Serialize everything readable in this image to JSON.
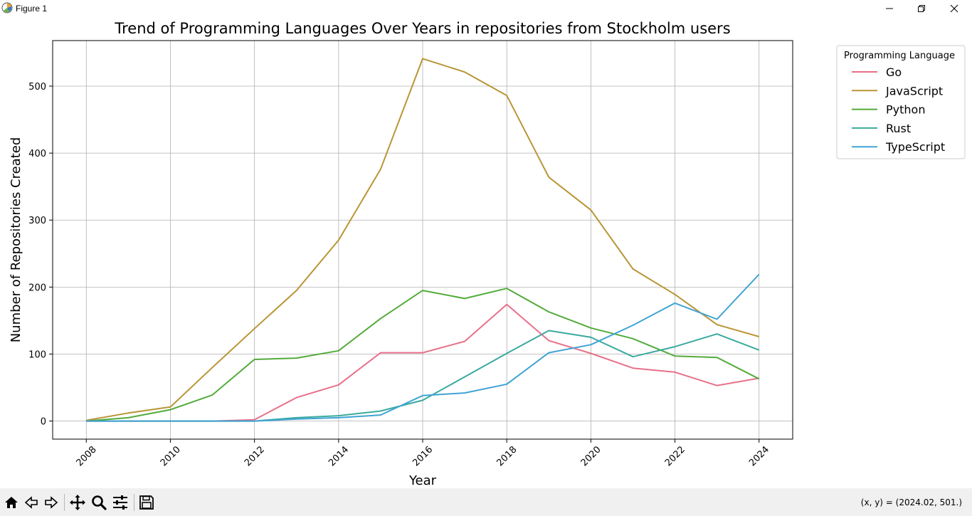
{
  "window": {
    "title": "Figure 1",
    "controls": [
      "minimize-icon",
      "restore-icon",
      "close-icon"
    ]
  },
  "toolbar": {
    "buttons": [
      "home-icon",
      "back-icon",
      "forward-icon",
      "pan-icon",
      "zoom-icon",
      "configure-icon",
      "save-icon"
    ],
    "coords_text": "(x, y) = (2024.02, 501.)"
  },
  "chart_data": {
    "type": "line",
    "title": "Trend of Programming Languages Over Years in repositories from Stockholm users",
    "xlabel": "Year",
    "ylabel": "Number of Repositories Created",
    "xlim": [
      2007.2,
      2024.8
    ],
    "ylim": [
      -27,
      568
    ],
    "x_ticks": [
      2008,
      2010,
      2012,
      2014,
      2016,
      2018,
      2020,
      2022,
      2024
    ],
    "y_ticks": [
      0,
      100,
      200,
      300,
      400,
      500
    ],
    "grid": true,
    "legend": {
      "title": "Programming Language",
      "placement": "outside-top-right"
    },
    "x": [
      2008,
      2009,
      2010,
      2011,
      2012,
      2013,
      2014,
      2015,
      2016,
      2017,
      2018,
      2019,
      2020,
      2021,
      2022,
      2023,
      2024
    ],
    "series": [
      {
        "name": "Go",
        "color": "#e8708a",
        "values": [
          0,
          0,
          0,
          0,
          2,
          35,
          54,
          102,
          102,
          119,
          174,
          120,
          101,
          79,
          73,
          53,
          64
        ]
      },
      {
        "name": "JavaScript",
        "color": "#b89535",
        "values": [
          1,
          12,
          21,
          80,
          138,
          195,
          270,
          376,
          541,
          521,
          486,
          364,
          315,
          227,
          189,
          144,
          126
        ]
      },
      {
        "name": "Python",
        "color": "#53ab3b",
        "values": [
          0,
          5,
          17,
          39,
          92,
          94,
          105,
          153,
          195,
          183,
          198,
          163,
          139,
          123,
          97,
          95,
          63
        ]
      },
      {
        "name": "Rust",
        "color": "#3aaa9e",
        "values": [
          0,
          0,
          0,
          0,
          0,
          5,
          8,
          15,
          31,
          66,
          101,
          135,
          125,
          96,
          111,
          130,
          106
        ]
      },
      {
        "name": "TypeScript",
        "color": "#40a3d4",
        "values": [
          0,
          0,
          0,
          0,
          0,
          3,
          5,
          9,
          38,
          42,
          55,
          102,
          114,
          143,
          176,
          152,
          219
        ]
      }
    ]
  }
}
